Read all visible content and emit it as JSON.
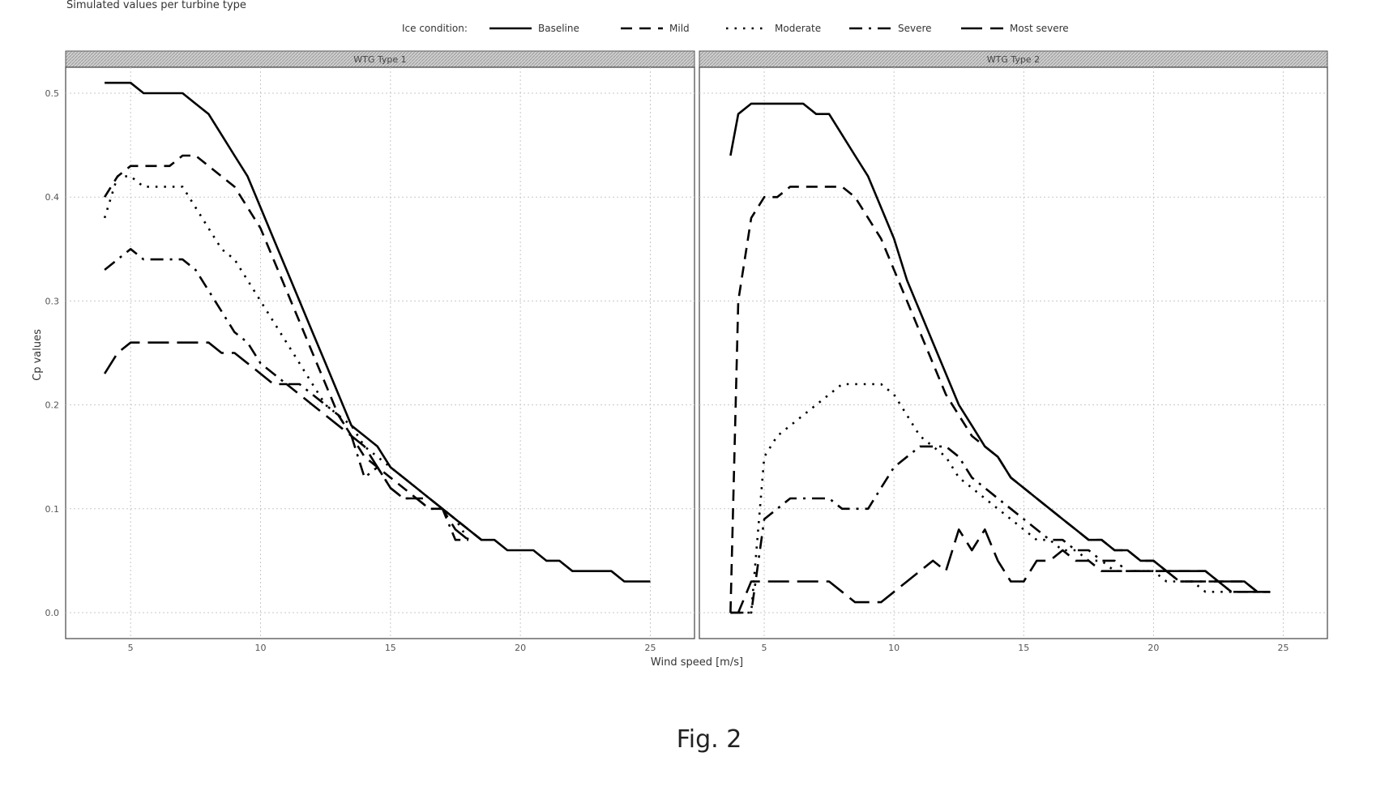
{
  "chart_data": {
    "type": "line",
    "title": "Simulated values per turbine type",
    "xlabel": "Wind speed [m/s]",
    "ylabel": "Cp values",
    "legend_title": "Ice condition:",
    "legend_position": "top",
    "grid": true,
    "figure_label": "Fig. 2",
    "series_styles": [
      {
        "name": "Baseline",
        "dash": "solid"
      },
      {
        "name": "Mild",
        "dash": "dashed"
      },
      {
        "name": "Moderate",
        "dash": "dotted"
      },
      {
        "name": "Severe",
        "dash": "dashdot"
      },
      {
        "name": "Most severe",
        "dash": "longdash"
      }
    ],
    "panels": [
      {
        "strip": "WTG Type 1",
        "xlim": [
          2.5,
          26.7
        ],
        "ylim": [
          -0.025,
          0.525
        ],
        "xticks": [
          "5",
          "10",
          "15",
          "20",
          "25"
        ],
        "xtick_values": [
          5,
          10,
          15,
          20,
          25
        ],
        "yticks": [
          "0.0",
          "0.1",
          "0.2",
          "0.3",
          "0.4",
          "0.5"
        ],
        "ytick_values": [
          0.0,
          0.1,
          0.2,
          0.3,
          0.4,
          0.5
        ],
        "series": [
          {
            "name": "Baseline",
            "x": [
              4,
              4.5,
              5,
              5.5,
              6,
              6.5,
              7,
              7.5,
              8,
              8.5,
              9,
              9.5,
              10,
              10.5,
              11,
              11.5,
              12,
              12.5,
              13,
              13.5,
              14,
              14.5,
              15,
              15.5,
              16,
              16.5,
              17,
              17.5,
              18,
              18.5,
              19,
              19.5,
              20,
              20.5,
              21,
              21.5,
              22,
              22.5,
              23,
              23.5,
              24,
              24.5,
              25
            ],
            "y": [
              0.51,
              0.51,
              0.51,
              0.5,
              0.5,
              0.5,
              0.5,
              0.49,
              0.48,
              0.46,
              0.44,
              0.42,
              0.39,
              0.36,
              0.33,
              0.3,
              0.27,
              0.24,
              0.21,
              0.18,
              0.17,
              0.16,
              0.14,
              0.13,
              0.12,
              0.11,
              0.1,
              0.09,
              0.08,
              0.07,
              0.07,
              0.06,
              0.06,
              0.06,
              0.05,
              0.05,
              0.04,
              0.04,
              0.04,
              0.04,
              0.03,
              0.03,
              0.03
            ]
          },
          {
            "name": "Mild",
            "x": [
              4,
              4.5,
              5,
              5.5,
              6,
              6.5,
              7,
              7.5,
              8,
              8.5,
              9,
              9.5,
              10,
              10.5,
              11,
              11.5,
              12,
              12.5,
              13,
              13.5,
              14,
              14.5,
              15,
              15.5,
              16,
              16.5,
              17,
              17.5,
              18,
              18.5
            ],
            "y": [
              0.4,
              0.42,
              0.43,
              0.43,
              0.43,
              0.43,
              0.44,
              0.44,
              0.43,
              0.42,
              0.41,
              0.39,
              0.37,
              0.34,
              0.31,
              0.28,
              0.25,
              0.22,
              0.19,
              0.17,
              0.15,
              0.14,
              0.13,
              0.12,
              0.11,
              0.11,
              0.1,
              0.09,
              0.08,
              0.07
            ]
          },
          {
            "name": "Moderate",
            "x": [
              4,
              4.5,
              5,
              5.5,
              6,
              6.5,
              7,
              7.5,
              8,
              8.5,
              9,
              9.5,
              10,
              10.5,
              11,
              11.5,
              12,
              12.5,
              13,
              13.5,
              14,
              14.5,
              15,
              15.5,
              16,
              16.5,
              17,
              17.5,
              18
            ],
            "y": [
              0.38,
              0.42,
              0.42,
              0.41,
              0.41,
              0.41,
              0.41,
              0.39,
              0.37,
              0.35,
              0.34,
              0.32,
              0.3,
              0.28,
              0.26,
              0.24,
              0.22,
              0.2,
              0.19,
              0.18,
              0.16,
              0.15,
              0.14,
              0.13,
              0.12,
              0.11,
              0.1,
              0.09,
              0.07
            ]
          },
          {
            "name": "Severe",
            "x": [
              4,
              4.5,
              5,
              5.5,
              6,
              6.5,
              7,
              7.5,
              8,
              8.5,
              9,
              9.5,
              10,
              10.5,
              11,
              11.5,
              12,
              12.5,
              13,
              13.5,
              14,
              14.5,
              15,
              15.5,
              16,
              16.5,
              17,
              17.5,
              18
            ],
            "y": [
              0.33,
              0.34,
              0.35,
              0.34,
              0.34,
              0.34,
              0.34,
              0.33,
              0.31,
              0.29,
              0.27,
              0.26,
              0.24,
              0.23,
              0.22,
              0.22,
              0.21,
              0.2,
              0.19,
              0.17,
              0.13,
              0.14,
              0.12,
              0.11,
              0.11,
              0.1,
              0.1,
              0.07,
              0.07
            ]
          },
          {
            "name": "Most severe",
            "x": [
              4,
              4.5,
              5,
              5.5,
              6,
              6.5,
              7,
              7.5,
              8,
              8.5,
              9,
              9.5,
              10,
              10.5,
              11,
              11.5,
              12,
              12.5,
              13,
              13.5,
              14,
              14.5,
              15,
              15.5,
              16,
              16.5,
              17,
              17.5,
              18
            ],
            "y": [
              0.23,
              0.25,
              0.26,
              0.26,
              0.26,
              0.26,
              0.26,
              0.26,
              0.26,
              0.25,
              0.25,
              0.24,
              0.23,
              0.22,
              0.22,
              0.21,
              0.2,
              0.19,
              0.18,
              0.17,
              0.16,
              0.14,
              0.12,
              0.11,
              0.11,
              0.1,
              0.1,
              0.08,
              0.07
            ]
          }
        ]
      },
      {
        "strip": "WTG Type 2",
        "xlim": [
          2.5,
          26.7
        ],
        "ylim": [
          -0.025,
          0.525
        ],
        "xticks": [
          "5",
          "10",
          "15",
          "20",
          "25"
        ],
        "xtick_values": [
          5,
          10,
          15,
          20,
          25
        ],
        "yticks": [],
        "ytick_values": [
          0.0,
          0.1,
          0.2,
          0.3,
          0.4,
          0.5
        ],
        "series": [
          {
            "name": "Baseline",
            "x": [
              3.7,
              4,
              4.5,
              5,
              5.5,
              6,
              6.5,
              7,
              7.5,
              8,
              8.5,
              9,
              9.5,
              10,
              10.5,
              11,
              11.5,
              12,
              12.5,
              13,
              13.5,
              14,
              14.5,
              15,
              15.5,
              16,
              16.5,
              17,
              17.5,
              18,
              18.5,
              19,
              19.5,
              20,
              20.5,
              21,
              21.5,
              22,
              22.5,
              23,
              23.5,
              24,
              24.5
            ],
            "y": [
              0.44,
              0.48,
              0.49,
              0.49,
              0.49,
              0.49,
              0.49,
              0.48,
              0.48,
              0.46,
              0.44,
              0.42,
              0.39,
              0.36,
              0.32,
              0.29,
              0.26,
              0.23,
              0.2,
              0.18,
              0.16,
              0.15,
              0.13,
              0.12,
              0.11,
              0.1,
              0.09,
              0.08,
              0.07,
              0.07,
              0.06,
              0.06,
              0.05,
              0.05,
              0.04,
              0.04,
              0.04,
              0.04,
              0.03,
              0.03,
              0.03,
              0.02,
              0.02
            ]
          },
          {
            "name": "Mild",
            "x": [
              3.7,
              4,
              4.5,
              5,
              5.5,
              6,
              6.5,
              7,
              7.5,
              8,
              8.5,
              9,
              9.5,
              10,
              10.5,
              11,
              11.5,
              12,
              12.5,
              13,
              13.5,
              14,
              14.5,
              15,
              15.5,
              16,
              16.5,
              17,
              17.5,
              18,
              18.5,
              19,
              19.5,
              20,
              20.5,
              21,
              21.5,
              22,
              22.5,
              23,
              23.5,
              24,
              24.5
            ],
            "y": [
              0.0,
              0.3,
              0.38,
              0.4,
              0.4,
              0.41,
              0.41,
              0.41,
              0.41,
              0.41,
              0.4,
              0.38,
              0.36,
              0.33,
              0.3,
              0.27,
              0.24,
              0.21,
              0.19,
              0.17,
              0.16,
              0.15,
              0.13,
              0.12,
              0.11,
              0.1,
              0.09,
              0.08,
              0.07,
              0.07,
              0.06,
              0.06,
              0.05,
              0.05,
              0.04,
              0.04,
              0.04,
              0.04,
              0.03,
              0.03,
              0.03,
              0.02,
              0.02
            ]
          },
          {
            "name": "Moderate",
            "x": [
              3.7,
              4,
              4.5,
              5,
              5.5,
              6,
              6.5,
              7,
              7.5,
              8,
              8.5,
              9,
              9.5,
              10,
              10.5,
              11,
              11.5,
              12,
              12.5,
              13,
              13.5,
              14,
              14.5,
              15,
              15.5,
              16,
              16.5,
              17,
              17.5,
              18,
              18.5,
              19,
              19.5,
              20,
              20.5,
              21,
              21.5,
              22,
              22.5,
              23,
              23.5,
              24,
              24.5
            ],
            "y": [
              0.0,
              0.0,
              0.0,
              0.15,
              0.17,
              0.18,
              0.19,
              0.2,
              0.21,
              0.22,
              0.22,
              0.22,
              0.22,
              0.21,
              0.19,
              0.17,
              0.16,
              0.15,
              0.13,
              0.12,
              0.11,
              0.1,
              0.09,
              0.08,
              0.07,
              0.07,
              0.06,
              0.06,
              0.05,
              0.05,
              0.04,
              0.04,
              0.04,
              0.04,
              0.03,
              0.03,
              0.03,
              0.02,
              0.02,
              0.02,
              0.02,
              0.02,
              0.02
            ]
          },
          {
            "name": "Severe",
            "x": [
              3.7,
              4,
              4.5,
              5,
              5.5,
              6,
              6.5,
              7,
              7.5,
              8,
              8.5,
              9,
              9.5,
              10,
              10.5,
              11,
              11.5,
              12,
              12.5,
              13,
              13.5,
              14,
              14.5,
              15,
              15.5,
              16,
              16.5,
              17,
              17.5,
              18,
              18.5,
              19,
              19.5,
              20,
              20.5,
              21,
              21.5,
              22,
              22.5,
              23,
              23.5,
              24,
              24.5
            ],
            "y": [
              0.0,
              0.0,
              0.0,
              0.09,
              0.1,
              0.11,
              0.11,
              0.11,
              0.11,
              0.1,
              0.1,
              0.1,
              0.12,
              0.14,
              0.15,
              0.16,
              0.16,
              0.16,
              0.15,
              0.13,
              0.12,
              0.11,
              0.1,
              0.09,
              0.08,
              0.07,
              0.07,
              0.06,
              0.06,
              0.05,
              0.05,
              0.04,
              0.04,
              0.04,
              0.04,
              0.03,
              0.03,
              0.03,
              0.03,
              0.02,
              0.02,
              0.02,
              0.02
            ]
          },
          {
            "name": "Most severe",
            "x": [
              3.7,
              4,
              4.5,
              5,
              5.5,
              6,
              6.5,
              7,
              7.5,
              8,
              8.5,
              9,
              9.5,
              10,
              10.5,
              11,
              11.5,
              12,
              12.5,
              13,
              13.5,
              14,
              14.5,
              15,
              15.5,
              16,
              16.5,
              17,
              17.5,
              18,
              18.5,
              19,
              19.5,
              20,
              20.5,
              21,
              21.5,
              22,
              22.5,
              23,
              23.5,
              24,
              24.5
            ],
            "y": [
              0.0,
              0.0,
              0.03,
              0.03,
              0.03,
              0.03,
              0.03,
              0.03,
              0.03,
              0.02,
              0.01,
              0.01,
              0.01,
              0.02,
              0.03,
              0.04,
              0.05,
              0.04,
              0.08,
              0.06,
              0.08,
              0.05,
              0.03,
              0.03,
              0.05,
              0.05,
              0.06,
              0.05,
              0.05,
              0.04,
              0.04,
              0.04,
              0.04,
              0.04,
              0.04,
              0.03,
              0.03,
              0.03,
              0.03,
              0.02,
              0.02,
              0.02,
              0.02
            ]
          }
        ]
      }
    ]
  }
}
